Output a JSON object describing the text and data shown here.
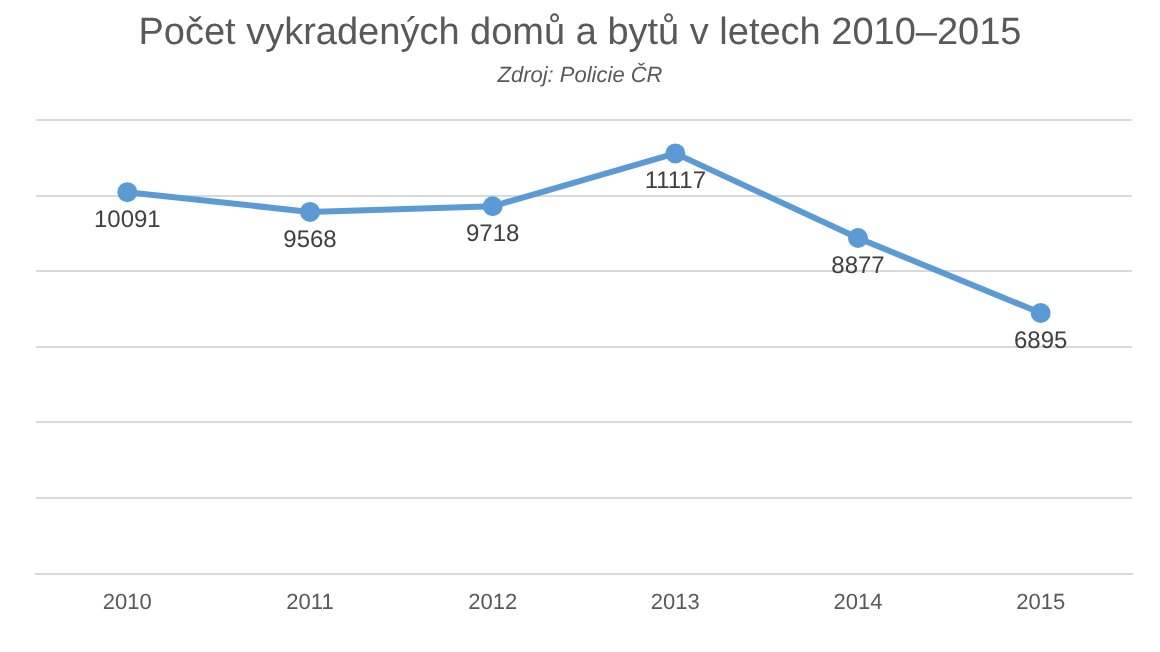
{
  "chart_data": {
    "type": "line",
    "title": "Počet vykradených domů a bytů v letech 2010–2015",
    "subtitle": "Zdroj: Policie ČR",
    "categories": [
      "2010",
      "2011",
      "2012",
      "2013",
      "2014",
      "2015"
    ],
    "series": [
      {
        "color": "#5b9bd5",
        "values": [
          10091,
          9568,
          9718,
          11117,
          8877,
          6895
        ]
      }
    ],
    "ylim": [
      0,
      12000
    ],
    "yticks": [
      {
        "value": 0,
        "label": null
      },
      {
        "value": 2000,
        "label": null
      },
      {
        "value": 4000,
        "label": null
      },
      {
        "value": 6000,
        "label": null
      },
      {
        "value": 8000,
        "label": null
      },
      {
        "value": 10000,
        "label": null
      },
      {
        "value": 12000,
        "label": null
      }
    ],
    "tick_labels": "x",
    "grid": "y",
    "data_labels": true,
    "marker": "circle",
    "line_style": "solid"
  }
}
